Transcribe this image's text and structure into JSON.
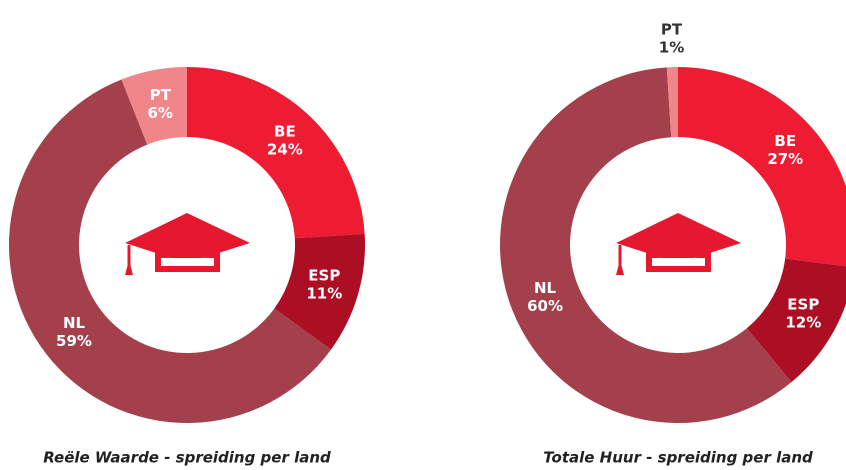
{
  "chart_data": [
    {
      "type": "donut",
      "title": "Reële Waarde - spreiding per land",
      "categories": [
        "BE",
        "ESP",
        "NL",
        "PT"
      ],
      "values": [
        24,
        11,
        59,
        6
      ],
      "value_labels": [
        "24%",
        "11%",
        "59%",
        "6%"
      ],
      "colors": [
        "#ed1c33",
        "#ac0e24",
        "#a3404b",
        "#f0868a"
      ]
    },
    {
      "type": "donut",
      "title": "Totale Huur - spreiding per land",
      "categories": [
        "BE",
        "ESP",
        "NL",
        "PT"
      ],
      "values": [
        27,
        12,
        60,
        1
      ],
      "value_labels": [
        "27%",
        "12%",
        "60%",
        "1%"
      ],
      "colors": [
        "#ed1c33",
        "#ac0e24",
        "#a3404b",
        "#f0868a"
      ]
    }
  ]
}
